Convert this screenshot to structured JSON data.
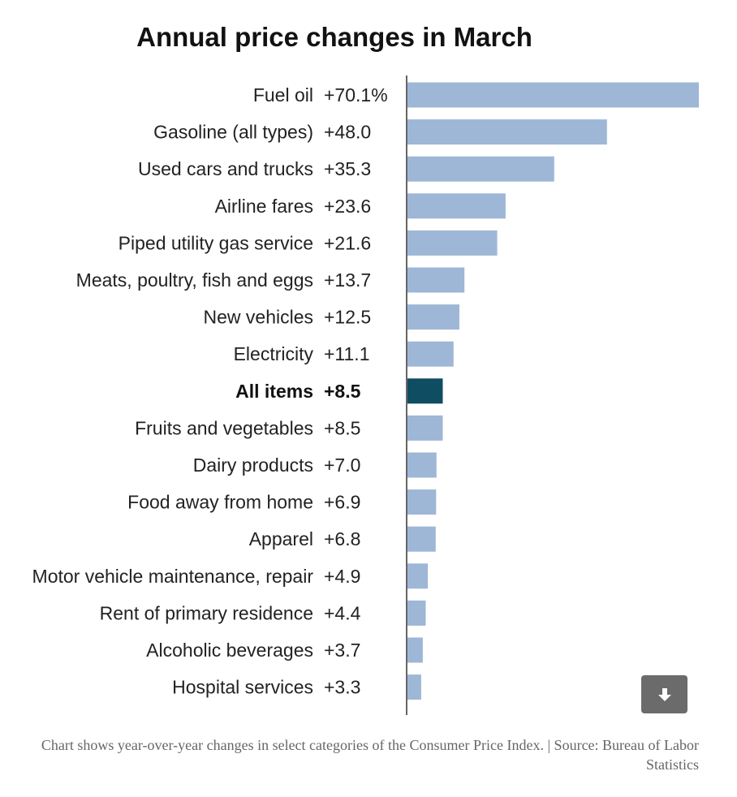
{
  "chart_data": {
    "type": "bar",
    "orientation": "horizontal",
    "title": "Annual price changes in March",
    "categories": [
      "Fuel oil",
      "Gasoline (all types)",
      "Used cars and trucks",
      "Airline fares",
      "Piped utility gas service",
      "Meats, poultry, fish and eggs",
      "New vehicles",
      "Electricity",
      "All items",
      "Fruits and vegetables",
      "Dairy products",
      "Food away from home",
      "Apparel",
      "Motor vehicle maintenance, repair",
      "Rent of primary residence",
      "Alcoholic beverages",
      "Hospital services"
    ],
    "values": [
      70.1,
      48.0,
      35.3,
      23.6,
      21.6,
      13.7,
      12.5,
      11.1,
      8.5,
      8.5,
      7.0,
      6.9,
      6.8,
      4.9,
      4.4,
      3.7,
      3.3
    ],
    "value_labels": [
      "+70.1%",
      "+48.0",
      "+35.3",
      "+23.6",
      "+21.6",
      "+13.7",
      "+12.5",
      "+11.1",
      "+8.5",
      "+8.5",
      "+7.0",
      "+6.9",
      "+6.8",
      "+4.9",
      "+4.4",
      "+3.7",
      "+3.3"
    ],
    "highlight": "All items",
    "xlim": [
      0,
      70.1
    ],
    "grid": false,
    "colors": {
      "bar": "#9fb7d6",
      "highlight": "#0f4d63",
      "axis": "#333333"
    }
  },
  "caption": "Chart shows year-over-year changes in select categories of the Consumer Price Index. | Source: Bureau of Labor Statistics",
  "download_button": {
    "icon": "download-arrow-icon",
    "color": "#6b6b6b"
  }
}
